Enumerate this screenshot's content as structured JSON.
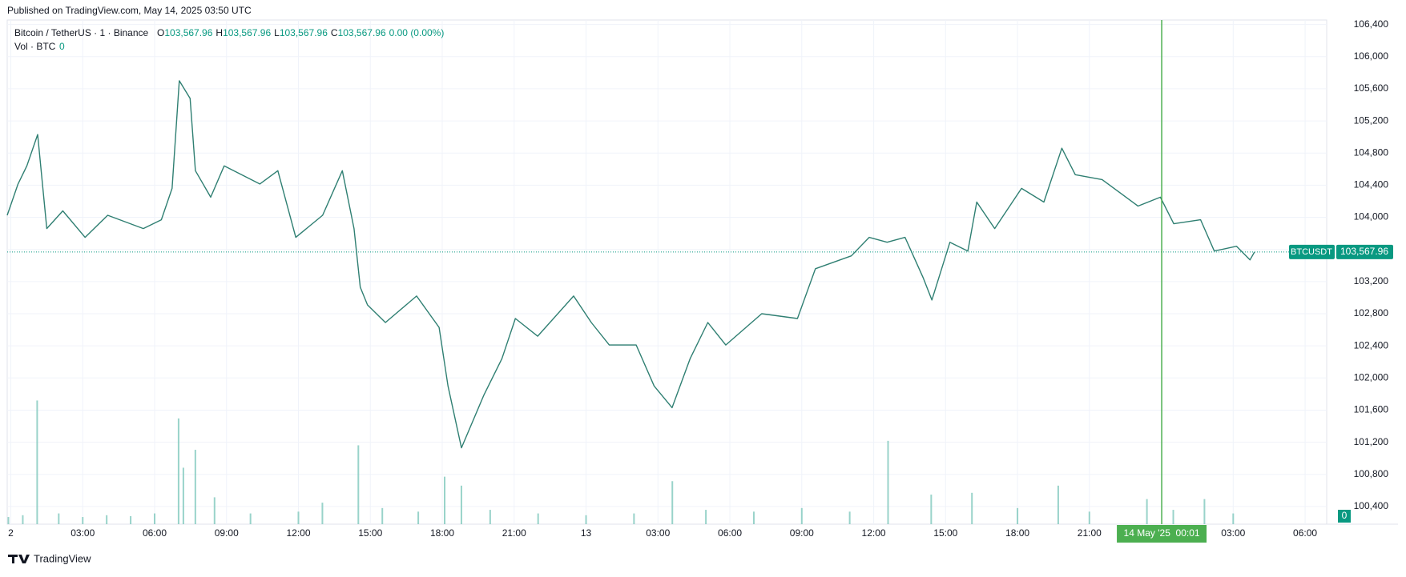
{
  "published": "Published on TradingView.com, May 14, 2025 03:50 UTC",
  "brand": "TradingView",
  "chart_data": {
    "type": "line",
    "x": [
      -0.15,
      0.3,
      0.67,
      1.12,
      1.5,
      2.17,
      3.1,
      4.04,
      5.53,
      6.28,
      6.73,
      7.03,
      7.48,
      7.7,
      8.34,
      8.9,
      10.39,
      11.14,
      11.89,
      13.01,
      13.83,
      14.32,
      14.58,
      14.88,
      15.63,
      16.93,
      17.87,
      18.24,
      18.8,
      19.74,
      20.49,
      21.05,
      21.98,
      23.48,
      24.22,
      24.97,
      26.09,
      26.84,
      27.59,
      28.34,
      29.08,
      29.83,
      31.33,
      32.82,
      33.57,
      35.07,
      35.81,
      36.56,
      37.31,
      38.06,
      38.43,
      39.18,
      39.93,
      40.3,
      41.05,
      42.17,
      43.1,
      43.85,
      44.41,
      45.53,
      47.03,
      47.96,
      48.52,
      49.64,
      50.21,
      51.14,
      51.7,
      51.89
    ],
    "series": [
      {
        "name": "Bitcoin / TetherUS · 1 · Binance",
        "color": "#2f7f72",
        "values": [
          104025,
          104415,
          104640,
          105030,
          103860,
          104080,
          103750,
          104025,
          103860,
          103970,
          104360,
          105700,
          105480,
          104580,
          104250,
          104640,
          104415,
          104580,
          103750,
          104025,
          104580,
          103860,
          103130,
          102910,
          102690,
          103020,
          102630,
          101900,
          101130,
          101790,
          102240,
          102740,
          102520,
          103020,
          102690,
          102410,
          102410,
          101900,
          101630,
          102240,
          102690,
          102410,
          102800,
          102740,
          103360,
          103520,
          103750,
          103690,
          103750,
          103250,
          102970,
          103690,
          103580,
          104190,
          103860,
          104360,
          104190,
          104860,
          104530,
          104470,
          104140,
          104250,
          103920,
          103970,
          103580,
          103640,
          103470,
          103567.96
        ]
      }
    ],
    "ohlc": [
      {
        "key": "O",
        "value": 103567.96,
        "label": "103,567.96"
      },
      {
        "key": "H",
        "value": 103567.96,
        "label": "103,567.96"
      },
      {
        "key": "L",
        "value": 103567.96,
        "label": "103,567.96"
      },
      {
        "key": "C",
        "value": 103567.96,
        "label": "103,567.96"
      }
    ],
    "change": "0.00 (0.00%)",
    "symbol": "BTCUSDT",
    "last_price": {
      "value": 103567.96,
      "label": "103,567.96"
    },
    "crosshair": {
      "x": 48.0167,
      "label": "14 May '25  00:01",
      "color": "#4caf50"
    },
    "up_color": "#089981",
    "xlim": [
      -0.15,
      54.9
    ],
    "ylim": [
      100180,
      106456
    ],
    "grid": true,
    "xticks": [
      {
        "value": 0,
        "label": "2"
      },
      {
        "value": 3,
        "label": "03:00"
      },
      {
        "value": 6,
        "label": "06:00"
      },
      {
        "value": 9,
        "label": "09:00"
      },
      {
        "value": 12,
        "label": "12:00"
      },
      {
        "value": 15,
        "label": "15:00"
      },
      {
        "value": 18,
        "label": "18:00"
      },
      {
        "value": 21,
        "label": "21:00"
      },
      {
        "value": 24,
        "label": "13"
      },
      {
        "value": 27,
        "label": "03:00"
      },
      {
        "value": 30,
        "label": "06:00"
      },
      {
        "value": 33,
        "label": "09:00"
      },
      {
        "value": 36,
        "label": "12:00"
      },
      {
        "value": 39,
        "label": "15:00"
      },
      {
        "value": 42,
        "label": "18:00"
      },
      {
        "value": 45,
        "label": "21:00"
      },
      {
        "value": 51,
        "label": "03:00"
      },
      {
        "value": 54,
        "label": "06:00"
      }
    ],
    "yticks": [
      {
        "value": 100400,
        "label": "100,400"
      },
      {
        "value": 100800,
        "label": "100,800"
      },
      {
        "value": 101200,
        "label": "101,200"
      },
      {
        "value": 101600,
        "label": "101,600"
      },
      {
        "value": 102000,
        "label": "102,000"
      },
      {
        "value": 102400,
        "label": "102,400"
      },
      {
        "value": 102800,
        "label": "102,800"
      },
      {
        "value": 103200,
        "label": "103,200"
      },
      {
        "value": 103600,
        "label": "103,600"
      },
      {
        "value": 104000,
        "label": "104,000"
      },
      {
        "value": 104400,
        "label": "104,400"
      },
      {
        "value": 104800,
        "label": "104,800"
      },
      {
        "value": 105200,
        "label": "105,200"
      },
      {
        "value": 105600,
        "label": "105,600"
      },
      {
        "value": 106000,
        "label": "106,000"
      },
      {
        "value": 106400,
        "label": "106,400"
      }
    ],
    "volume": {
      "name": "Vol · BTC",
      "last": 0,
      "color": "#7fc8bd",
      "ylim": [
        0,
        1000
      ],
      "yticks": [
        0
      ],
      "x": [
        -0.1,
        0.5,
        1.1,
        2,
        3,
        4,
        5,
        6,
        7.0,
        7.2,
        7.7,
        8.5,
        10,
        12,
        13,
        14.5,
        15.5,
        17,
        18.1,
        18.8,
        20,
        22,
        24,
        26,
        27.6,
        29,
        31,
        33,
        35,
        36.6,
        38.4,
        40.1,
        42,
        43.7,
        45,
        47.4,
        48.5,
        49.8,
        51
      ],
      "values": [
        40,
        50,
        690,
        60,
        40,
        50,
        45,
        60,
        590,
        315,
        415,
        150,
        60,
        70,
        120,
        440,
        90,
        70,
        265,
        215,
        80,
        60,
        50,
        60,
        240,
        80,
        70,
        90,
        70,
        465,
        165,
        175,
        90,
        215,
        70,
        140,
        80,
        140,
        60
      ]
    }
  }
}
